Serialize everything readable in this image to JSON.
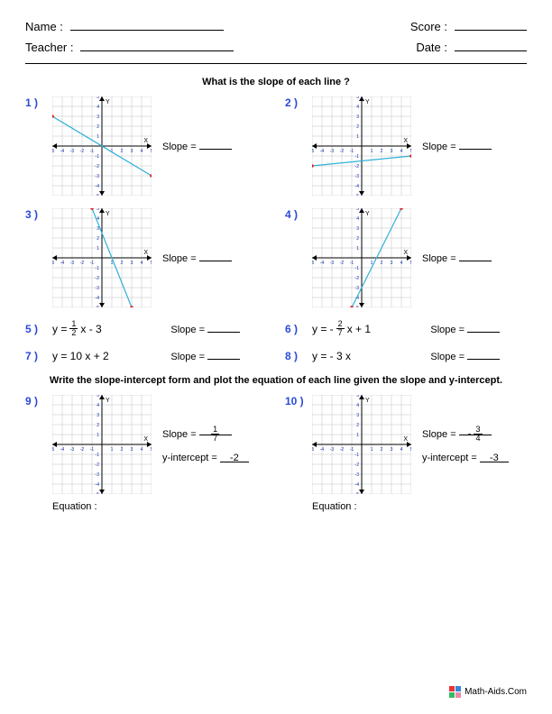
{
  "header": {
    "name_label": "Name :",
    "teacher_label": "Teacher :",
    "score_label": "Score :",
    "date_label": "Date :"
  },
  "section1_title": "What is the slope of each line ?",
  "section2_title": "Write the slope-intercept form and plot the equation of each line given the slope and y-intercept.",
  "slope_label": "Slope =",
  "yint_label": "y-intercept =",
  "equation_label": "Equation :",
  "footer": "Math-Aids.Com",
  "graph": {
    "size": 110,
    "range": 5,
    "grid_color": "#c0c0c0",
    "axis_color": "#000000",
    "tick_color": "#1030b0",
    "line_color": "#30b0d8",
    "point_color": "#e02020",
    "tick_fontsize": 5
  },
  "problems_graph": [
    {
      "n": "1 )",
      "p1": [
        -5,
        3
      ],
      "p2": [
        5,
        -3
      ]
    },
    {
      "n": "2 )",
      "p1": [
        -5,
        -2
      ],
      "p2": [
        5,
        -1
      ]
    },
    {
      "n": "3 )",
      "p1": [
        -1,
        5
      ],
      "p2": [
        3,
        -5
      ]
    },
    {
      "n": "4 )",
      "p1": [
        -1,
        -5
      ],
      "p2": [
        4,
        5
      ]
    }
  ],
  "problems_eq": [
    {
      "n": "5 )",
      "prefix": "y =  ",
      "frac_num": "1",
      "frac_den": "2",
      "suffix": "x - 3"
    },
    {
      "n": "6 )",
      "prefix": "y = -",
      "frac_num": "2",
      "frac_den": "7",
      "suffix": "x + 1"
    },
    {
      "n": "7 )",
      "text": "y =   10 x + 2"
    },
    {
      "n": "8 )",
      "text": "y =  - 3 x"
    }
  ],
  "problems_blank": [
    {
      "n": "9 )",
      "slope_num": "1",
      "slope_den": "7",
      "slope_neg": false,
      "yint": "-2"
    },
    {
      "n": "10  )",
      "slope_num": "3",
      "slope_den": "4",
      "slope_neg": true,
      "yint": "-3"
    }
  ]
}
